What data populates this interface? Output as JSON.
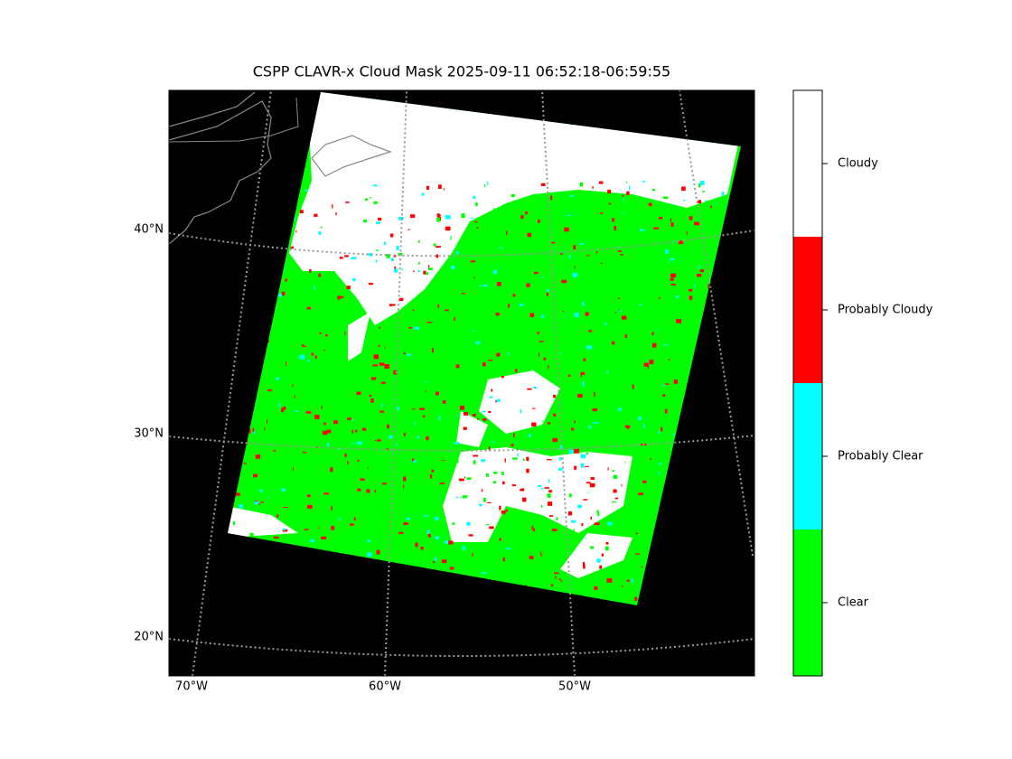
{
  "title": "CSPP CLAVR-x Cloud Mask 2025-09-11 06:52:18-06:59:55",
  "lat_labels": [
    "40°N",
    "30°N",
    "20°N"
  ],
  "lon_labels": [
    "70°W",
    "60°W",
    "50°W"
  ],
  "colorbar": [
    {
      "label": "Cloudy",
      "color": "#ffffff"
    },
    {
      "label": "Probably Cloudy",
      "color": "#ff0000"
    },
    {
      "label": "Probably Clear",
      "color": "#00ffff"
    },
    {
      "label": "Clear",
      "color": "#00ff00"
    }
  ]
}
